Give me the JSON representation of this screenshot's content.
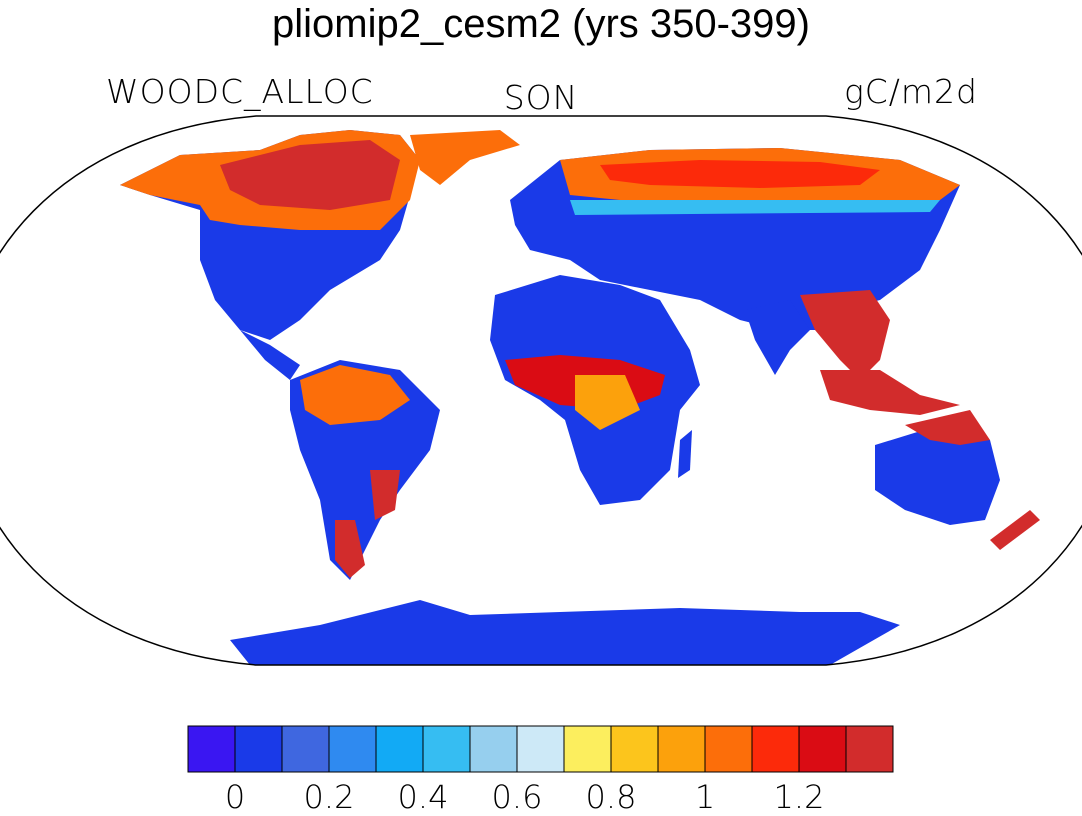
{
  "title": "pliomip2_cesm2 (yrs 350-399)",
  "variable": "WOODC_ALLOC",
  "season": "SON",
  "units": "gC/m2d",
  "colorbar": {
    "colors": [
      "#3a16f2",
      "#1a3ae8",
      "#3f67e0",
      "#2f8af0",
      "#12aaf5",
      "#36bdf2",
      "#96cfee",
      "#cde9f7",
      "#fcee5e",
      "#fcc51c",
      "#fca10c",
      "#fc6e0a",
      "#fc2a0a",
      "#da0c14",
      "#d22c2c"
    ],
    "tick_labels": [
      "0",
      "0.2",
      "0.4",
      "0.6",
      "0.8",
      "1",
      "1.2"
    ]
  }
}
